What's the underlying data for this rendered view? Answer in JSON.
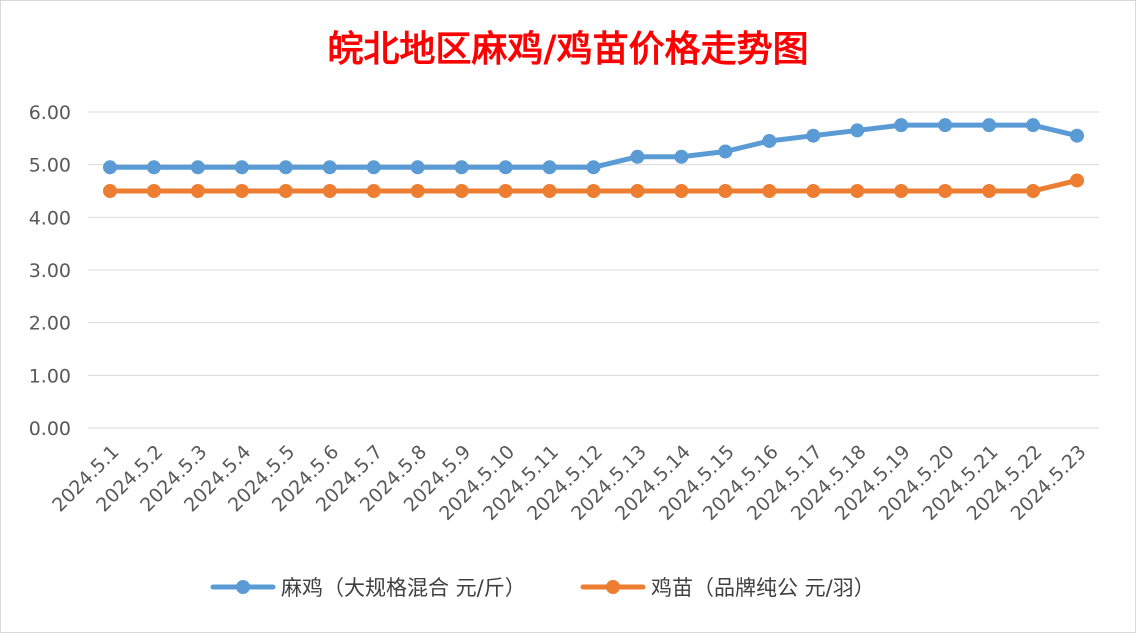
{
  "chart_data": {
    "type": "line",
    "title": "皖北地区麻鸡/鸡苗价格走势图",
    "categories": [
      "2024.5.1",
      "2024.5.2",
      "2024.5.3",
      "2024.5.4",
      "2024.5.5",
      "2024.5.6",
      "2024.5.7",
      "2024.5.8",
      "2024.5.9",
      "2024.5.10",
      "2024.5.11",
      "2024.5.12",
      "2024.5.13",
      "2024.5.14",
      "2024.5.15",
      "2024.5.16",
      "2024.5.17",
      "2024.5.18",
      "2024.5.19",
      "2024.5.20",
      "2024.5.21",
      "2024.5.22",
      "2024.5.23"
    ],
    "series": [
      {
        "name": "麻鸡（大规格混合 元/斤）",
        "color": "#5b9bd5",
        "values": [
          4.95,
          4.95,
          4.95,
          4.95,
          4.95,
          4.95,
          4.95,
          4.95,
          4.95,
          4.95,
          4.95,
          4.95,
          5.15,
          5.15,
          5.25,
          5.45,
          5.55,
          5.65,
          5.75,
          5.75,
          5.75,
          5.75,
          5.55
        ]
      },
      {
        "name": "鸡苗（品牌纯公 元/羽）",
        "color": "#ed7d31",
        "values": [
          4.5,
          4.5,
          4.5,
          4.5,
          4.5,
          4.5,
          4.5,
          4.5,
          4.5,
          4.5,
          4.5,
          4.5,
          4.5,
          4.5,
          4.5,
          4.5,
          4.5,
          4.5,
          4.5,
          4.5,
          4.5,
          4.5,
          4.7
        ]
      }
    ],
    "ylim": [
      0,
      6
    ],
    "yticks": [
      "0.00",
      "1.00",
      "2.00",
      "3.00",
      "4.00",
      "5.00",
      "6.00"
    ],
    "grid": true,
    "legend_position": "bottom",
    "title_color": "#ff0000"
  }
}
